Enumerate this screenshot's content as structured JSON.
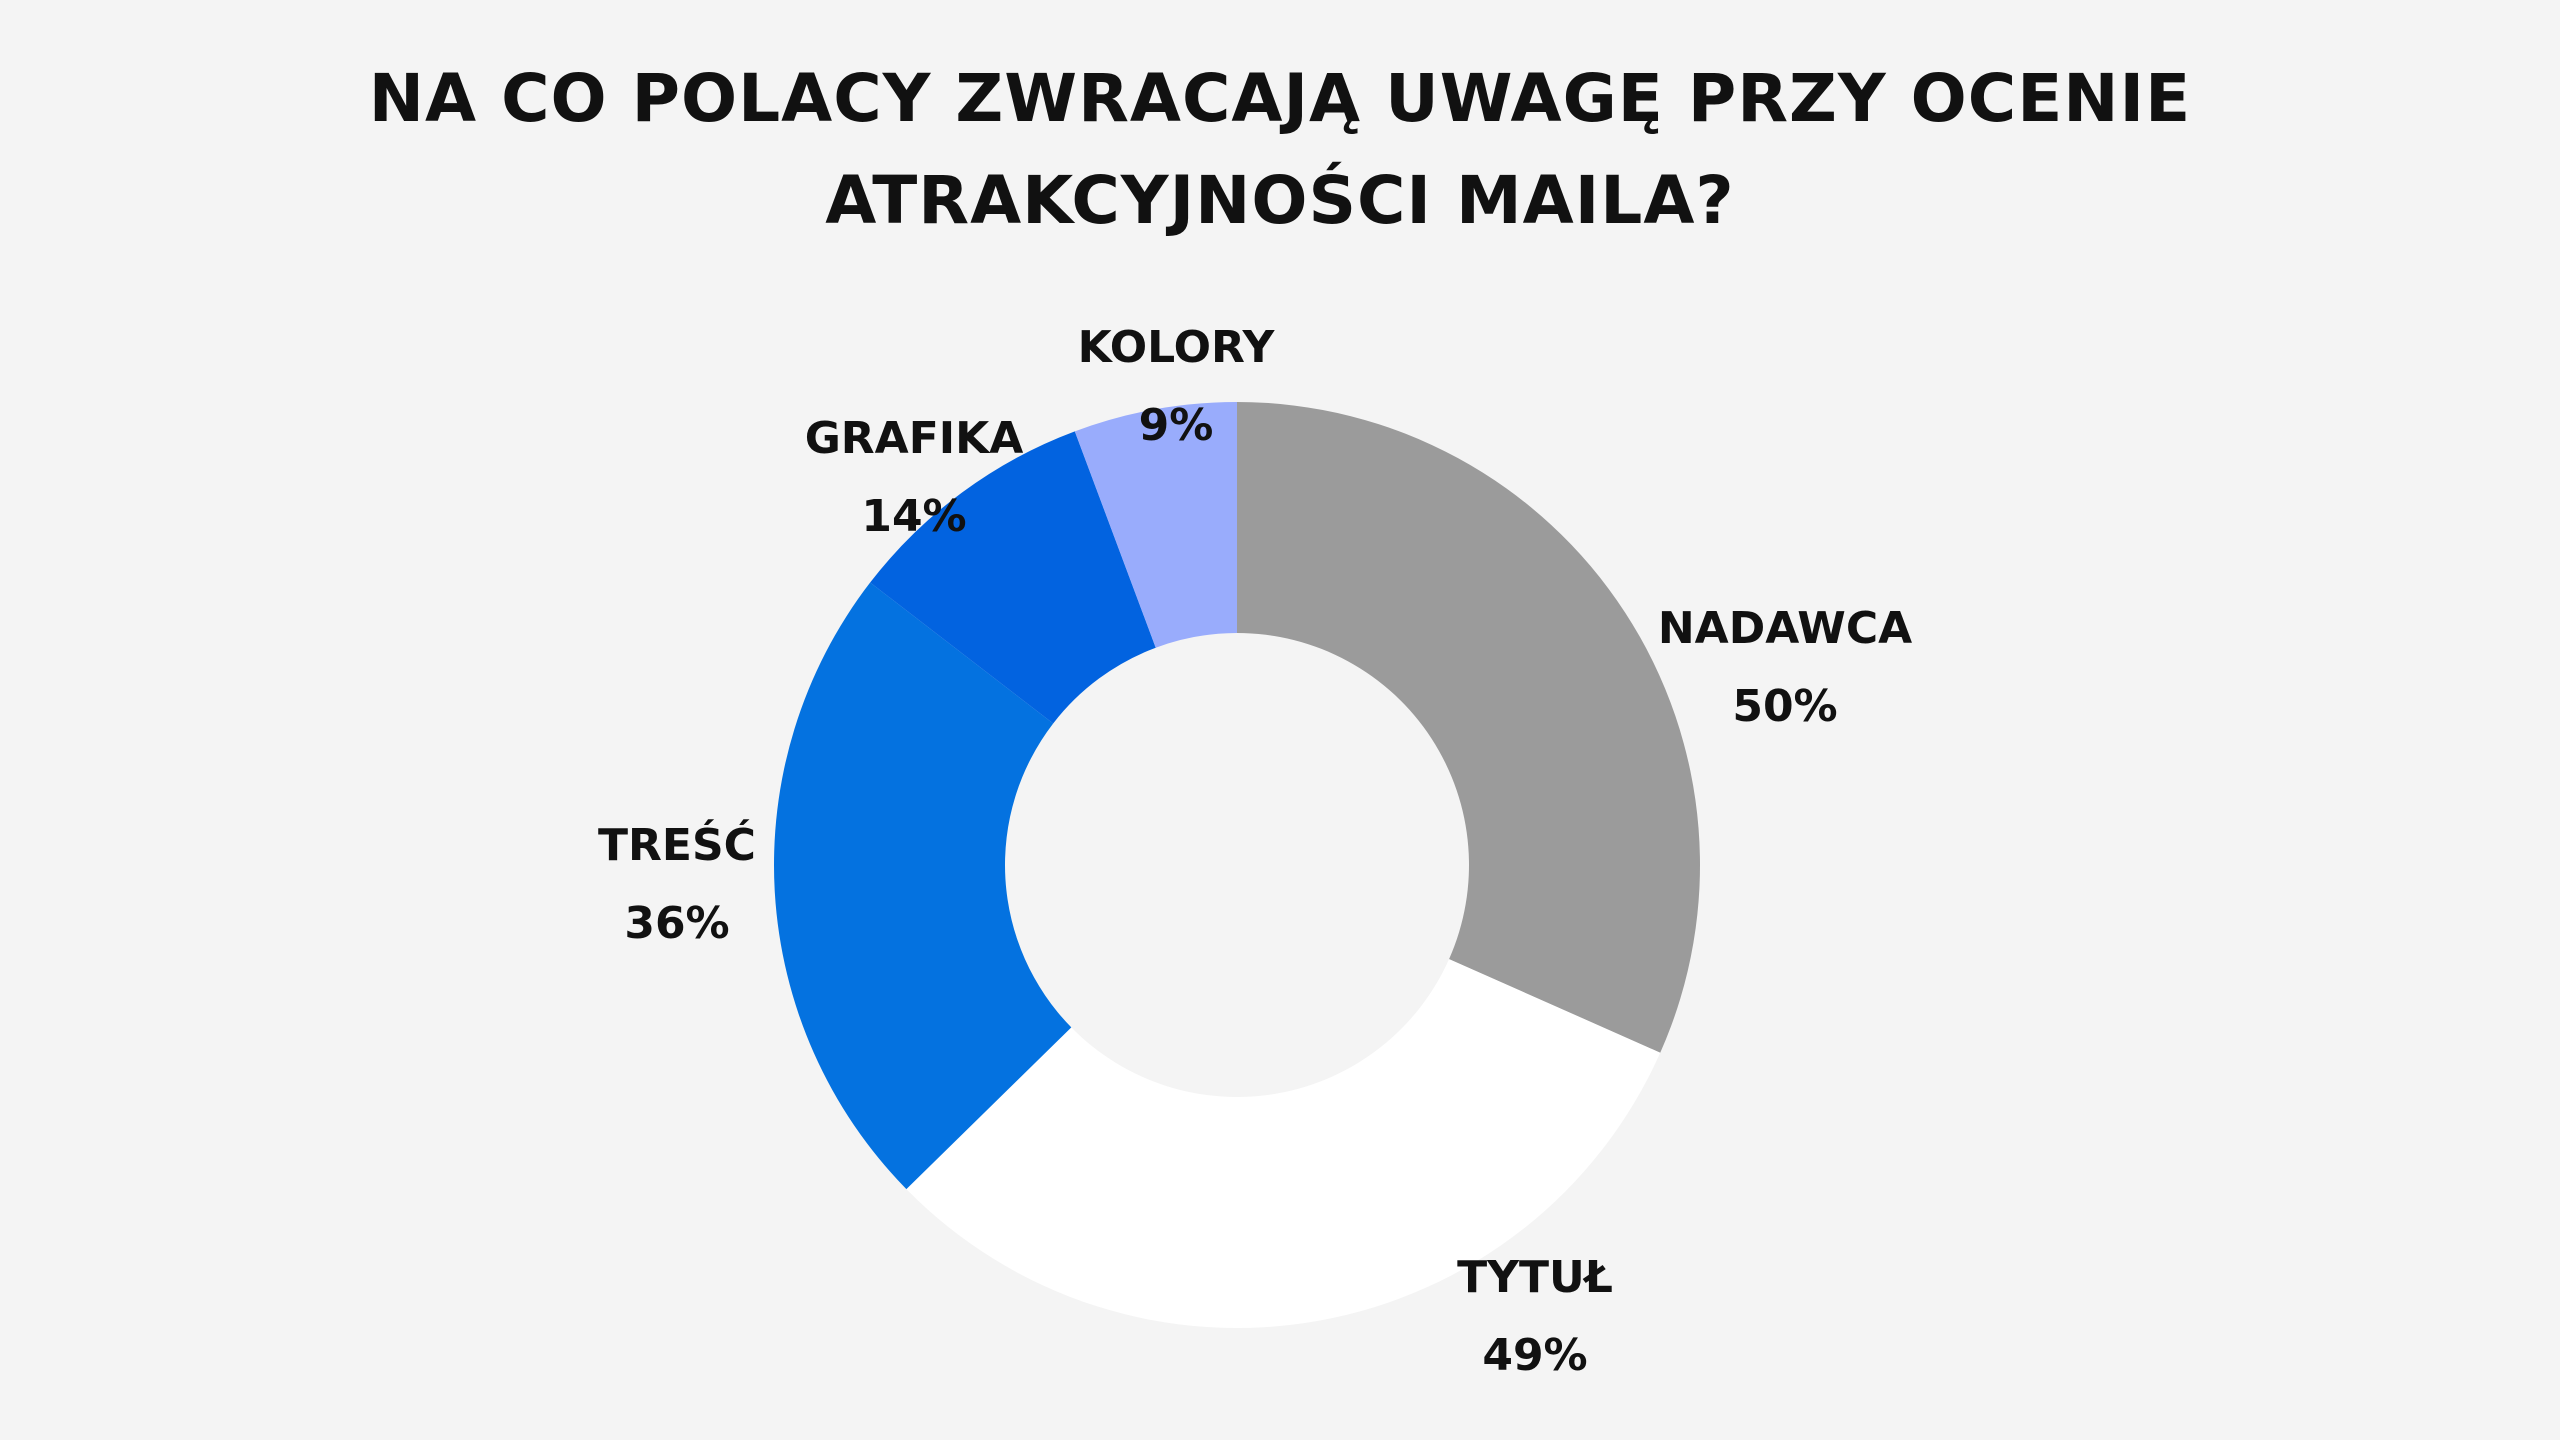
{
  "title_lines": [
    "NA CO POLACY ZWRACAJĄ UWAGĘ PRZY OCENIE",
    "ATRAKCYJNOŚCI MAILA?"
  ],
  "chart_data": {
    "type": "pie",
    "variant": "donut",
    "start_angle_deg": 0,
    "direction": "clockwise",
    "categories": [
      "NADAWCA",
      "TYTUŁ",
      "TREŚĆ",
      "GRAFIKA",
      "KOLORY"
    ],
    "values": [
      50,
      49,
      36,
      14,
      9
    ],
    "value_labels": [
      "50%",
      "49%",
      "36%",
      "14%",
      "9%"
    ],
    "colors": [
      "#9b9b9b",
      "#ffffff",
      "#0472e0",
      "#0263e0",
      "#99acfc"
    ]
  }
}
